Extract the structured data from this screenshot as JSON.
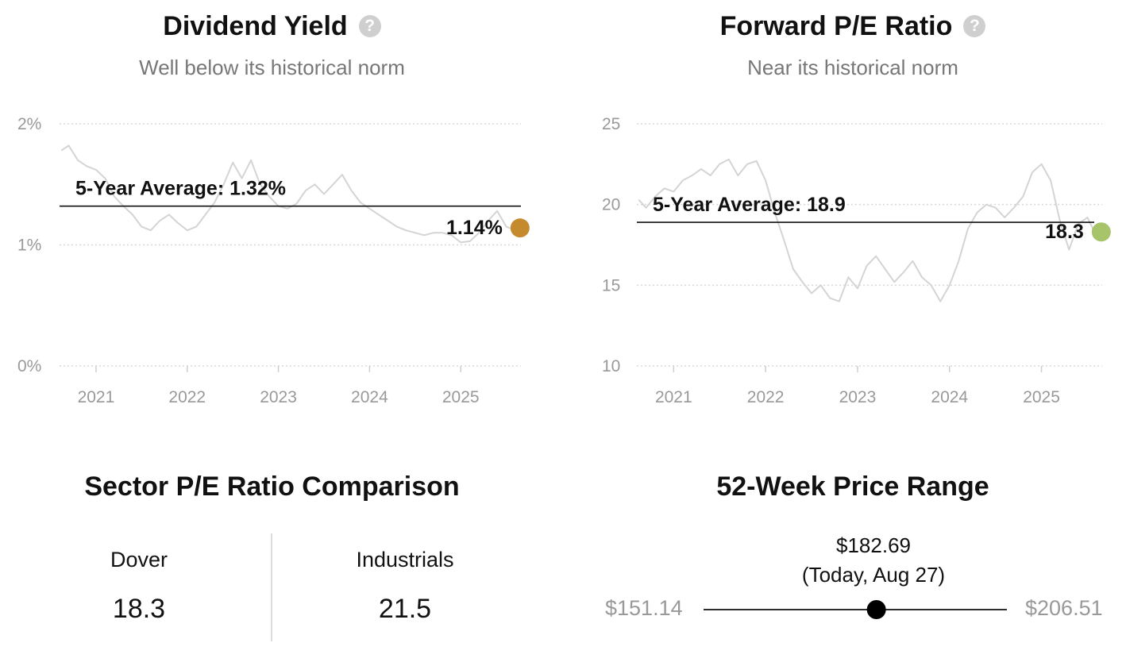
{
  "dividend_yield": {
    "title": "Dividend Yield",
    "subtitle": "Well below its historical norm",
    "help_icon": "question-circle-icon",
    "average_label": "5-Year Average: 1.32%",
    "current_label": "1.14%",
    "marker_color": "#c68a2e"
  },
  "forward_pe": {
    "title": "Forward P/E Ratio",
    "subtitle": "Near its historical norm",
    "help_icon": "question-circle-icon",
    "average_label": "5-Year Average: 18.9",
    "current_label": "18.3",
    "marker_color": "#a8c46a"
  },
  "sector_comparison": {
    "title": "Sector P/E Ratio Comparison",
    "company_name": "Dover",
    "company_value": "18.3",
    "sector_name": "Industrials",
    "sector_value": "21.5"
  },
  "price_range": {
    "title": "52-Week Price Range",
    "current_price": "$182.69",
    "current_note": "(Today, Aug 27)",
    "low": "$151.14",
    "high": "$206.51",
    "low_value": 151.14,
    "high_value": 206.51,
    "current_value": 182.69
  },
  "chart_data": [
    {
      "type": "line",
      "title": "Dividend Yield",
      "xlabel": "",
      "ylabel": "",
      "unit": "%",
      "xlim": [
        2020.6,
        2025.66
      ],
      "ylim": [
        0,
        2
      ],
      "y_ticks": [
        0,
        1,
        2
      ],
      "y_tick_labels": [
        "0%",
        "1%",
        "2%"
      ],
      "x_ticks": [
        2021,
        2022,
        2023,
        2024,
        2025
      ],
      "x_tick_labels": [
        "2021",
        "2022",
        "2023",
        "2024",
        "2025"
      ],
      "grid": true,
      "average": 1.32,
      "current": {
        "x": 2025.65,
        "y": 1.14
      },
      "series": [
        {
          "x": [
            2020.62,
            2020.7,
            2020.8,
            2020.9,
            2021.0,
            2021.1,
            2021.2,
            2021.3,
            2021.4,
            2021.5,
            2021.6,
            2021.7,
            2021.8,
            2021.9,
            2022.0,
            2022.1,
            2022.2,
            2022.3,
            2022.4,
            2022.5,
            2022.6,
            2022.7,
            2022.8,
            2022.9,
            2023.0,
            2023.1,
            2023.2,
            2023.3,
            2023.4,
            2023.5,
            2023.6,
            2023.7,
            2023.8,
            2023.9,
            2024.0,
            2024.1,
            2024.2,
            2024.3,
            2024.4,
            2024.5,
            2024.6,
            2024.7,
            2024.8,
            2024.9,
            2025.0,
            2025.1,
            2025.2,
            2025.3,
            2025.4,
            2025.5,
            2025.6,
            2025.65
          ],
          "y": [
            1.78,
            1.82,
            1.7,
            1.65,
            1.62,
            1.55,
            1.4,
            1.32,
            1.25,
            1.15,
            1.12,
            1.2,
            1.25,
            1.18,
            1.12,
            1.15,
            1.25,
            1.35,
            1.5,
            1.68,
            1.55,
            1.7,
            1.5,
            1.4,
            1.32,
            1.3,
            1.34,
            1.45,
            1.5,
            1.42,
            1.5,
            1.58,
            1.45,
            1.35,
            1.3,
            1.25,
            1.2,
            1.15,
            1.12,
            1.1,
            1.08,
            1.1,
            1.1,
            1.08,
            1.02,
            1.03,
            1.1,
            1.2,
            1.28,
            1.15,
            1.12,
            1.14
          ]
        }
      ]
    },
    {
      "type": "line",
      "title": "Forward P/E Ratio",
      "xlabel": "",
      "ylabel": "",
      "xlim": [
        2020.6,
        2025.66
      ],
      "ylim": [
        10,
        25
      ],
      "y_ticks": [
        10,
        15,
        20,
        25
      ],
      "y_tick_labels": [
        "10",
        "15",
        "20",
        "25"
      ],
      "x_ticks": [
        2021,
        2022,
        2023,
        2024,
        2025
      ],
      "x_tick_labels": [
        "2021",
        "2022",
        "2023",
        "2024",
        "2025"
      ],
      "grid": true,
      "average": 18.9,
      "current": {
        "x": 2025.65,
        "y": 18.3
      },
      "series": [
        {
          "x": [
            2020.62,
            2020.7,
            2020.8,
            2020.9,
            2021.0,
            2021.1,
            2021.2,
            2021.3,
            2021.4,
            2021.5,
            2021.6,
            2021.7,
            2021.8,
            2021.9,
            2022.0,
            2022.1,
            2022.2,
            2022.3,
            2022.4,
            2022.5,
            2022.6,
            2022.7,
            2022.8,
            2022.9,
            2023.0,
            2023.1,
            2023.2,
            2023.3,
            2023.4,
            2023.5,
            2023.6,
            2023.7,
            2023.8,
            2023.9,
            2024.0,
            2024.1,
            2024.2,
            2024.3,
            2024.4,
            2024.5,
            2024.6,
            2024.7,
            2024.8,
            2024.9,
            2025.0,
            2025.1,
            2025.2,
            2025.3,
            2025.4,
            2025.5,
            2025.6,
            2025.65
          ],
          "y": [
            20.3,
            19.8,
            20.5,
            21.0,
            20.8,
            21.5,
            21.8,
            22.2,
            21.8,
            22.5,
            22.8,
            21.8,
            22.5,
            22.7,
            21.5,
            19.5,
            17.8,
            16.0,
            15.2,
            14.5,
            15.0,
            14.2,
            14.0,
            15.5,
            14.8,
            16.2,
            16.8,
            16.0,
            15.2,
            15.8,
            16.5,
            15.5,
            15.0,
            14.0,
            15.0,
            16.5,
            18.5,
            19.5,
            20.0,
            19.8,
            19.2,
            19.8,
            20.5,
            22.0,
            22.5,
            21.5,
            19.0,
            17.2,
            18.8,
            19.2,
            18.0,
            18.3
          ]
        }
      ]
    }
  ]
}
